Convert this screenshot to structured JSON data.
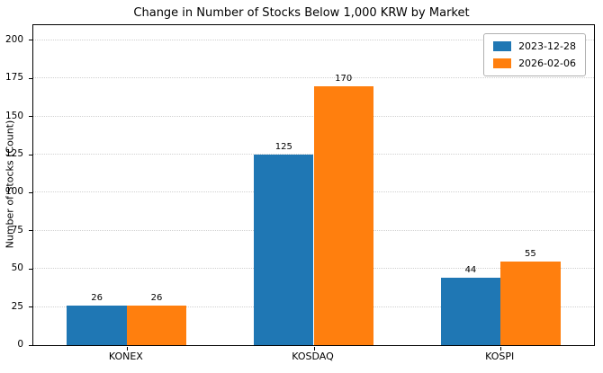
{
  "chart_data": {
    "type": "bar",
    "title": "Change in Number of Stocks Below 1,000 KRW by Market",
    "xlabel": "",
    "ylabel": "Number of Stocks (Count)",
    "categories": [
      "KONEX",
      "KOSDAQ",
      "KOSPI"
    ],
    "series": [
      {
        "name": "2023-12-28",
        "color": "#1f77b4",
        "values": [
          26,
          125,
          44
        ]
      },
      {
        "name": "2026-02-06",
        "color": "#ff7f0e",
        "values": [
          26,
          170,
          55
        ]
      }
    ],
    "yticks": [
      0,
      25,
      50,
      75,
      100,
      125,
      150,
      175,
      200
    ],
    "ylim": [
      0,
      210
    ],
    "grid": "horizontal-dotted",
    "legend_position": "upper-right",
    "bar_value_labels": true
  }
}
